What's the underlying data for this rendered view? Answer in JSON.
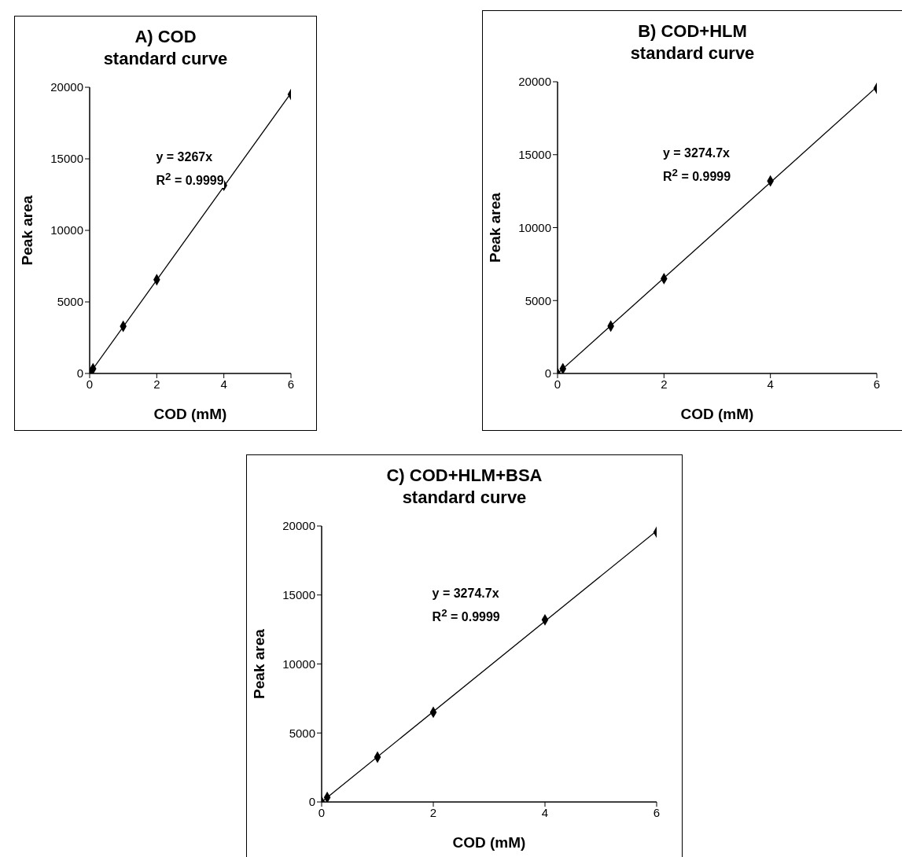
{
  "chart_data": [
    {
      "type": "scatter",
      "title": "A) COD\nstandard curve",
      "xlabel": "COD (mM)",
      "ylabel": "Peak area",
      "xlim": [
        0,
        6
      ],
      "xticks": [
        0,
        2,
        4,
        6
      ],
      "ylim": [
        0,
        20000
      ],
      "yticks": [
        0,
        5000,
        10000,
        15000,
        20000
      ],
      "marker": "diamond",
      "annotations": [
        "y = 3267x",
        "R$^{2}$ = 0.9999"
      ],
      "series": [
        {
          "color": "#000000",
          "x": [
            0,
            0.1,
            1,
            2,
            4,
            6
          ],
          "values": [
            0,
            330,
            3300,
            6550,
            13150,
            19500
          ]
        },
        {
          "type": "line",
          "color": "#000000",
          "marker": "none",
          "x": [
            0,
            6
          ],
          "values": [
            0,
            19600
          ]
        }
      ]
    },
    {
      "type": "scatter",
      "title": "B) COD+HLM\nstandard curve",
      "xlabel": "COD (mM)",
      "ylabel": "Peak area",
      "xlim": [
        0,
        6
      ],
      "xticks": [
        0,
        2,
        4,
        6
      ],
      "ylim": [
        0,
        20000
      ],
      "yticks": [
        0,
        5000,
        10000,
        15000,
        20000
      ],
      "marker": "diamond",
      "annotations": [
        "y = 3274.7x",
        "R$^{2}$ = 0.9999"
      ],
      "series": [
        {
          "color": "#000000",
          "x": [
            0,
            0.1,
            1,
            2,
            4,
            6
          ],
          "values": [
            0,
            330,
            3250,
            6500,
            13200,
            19550
          ]
        },
        {
          "type": "line",
          "color": "#000000",
          "marker": "none",
          "x": [
            0,
            6
          ],
          "values": [
            0,
            19650
          ]
        }
      ]
    },
    {
      "type": "scatter",
      "title": "C) COD+HLM+BSA\nstandard curve",
      "xlabel": "COD (mM)",
      "ylabel": "Peak area",
      "xlim": [
        0,
        6
      ],
      "xticks": [
        0,
        2,
        4,
        6
      ],
      "ylim": [
        0,
        20000
      ],
      "yticks": [
        0,
        5000,
        10000,
        15000,
        20000
      ],
      "marker": "diamond",
      "annotations": [
        "y = 3274.7x",
        "R$^{2}$ = 0.9999"
      ],
      "series": [
        {
          "color": "#000000",
          "x": [
            0,
            0.1,
            1,
            2,
            4,
            6
          ],
          "values": [
            0,
            330,
            3250,
            6500,
            13200,
            19550
          ]
        },
        {
          "type": "line",
          "color": "#000000",
          "marker": "none",
          "x": [
            0,
            6
          ],
          "values": [
            0,
            19650
          ]
        }
      ]
    }
  ]
}
